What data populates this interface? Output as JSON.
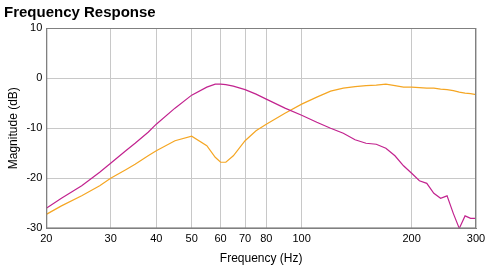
{
  "chart_data": {
    "type": "line",
    "title": "Frequency Response",
    "x_label": "Frequency (Hz)",
    "y_label": "Magnitude (dB)",
    "log": "x",
    "grid": true,
    "xlim": [
      20,
      300
    ],
    "xticks": [
      20,
      30,
      40,
      50,
      60,
      70,
      80,
      100,
      200,
      300
    ],
    "ylim": [
      -30,
      10
    ],
    "yticks": [
      -30,
      -20,
      -10,
      0,
      10
    ],
    "x": [
      20,
      22,
      25,
      28,
      30,
      33,
      35,
      38,
      40,
      45,
      50,
      55,
      58,
      60,
      62,
      65,
      70,
      75,
      80,
      90,
      100,
      110,
      120,
      130,
      140,
      150,
      160,
      170,
      180,
      190,
      200,
      210,
      220,
      230,
      240,
      250,
      260,
      270,
      280,
      290,
      300
    ],
    "series": [
      {
        "color": "#c2238f",
        "values": [
          -26,
          -24,
          -21.5,
          -18.8,
          -17,
          -14.5,
          -13,
          -10.8,
          -9.2,
          -6,
          -3.4,
          -1.8,
          -1.2,
          -1.2,
          -1.3,
          -1.6,
          -2.3,
          -3.2,
          -4.2,
          -6,
          -7.4,
          -8.8,
          -10,
          -11,
          -12.3,
          -13,
          -13.2,
          -14,
          -15.5,
          -17.5,
          -19,
          -20.5,
          -21,
          -23,
          -24,
          -23.5,
          -27,
          -30,
          -27.5,
          -28,
          -28
        ]
      },
      {
        "color": "#f5a623",
        "values": [
          -27.2,
          -25.5,
          -23.5,
          -21.5,
          -20,
          -18.3,
          -17.2,
          -15.5,
          -14.5,
          -12.5,
          -11.6,
          -13.5,
          -15.8,
          -16.8,
          -16.8,
          -15.5,
          -12.5,
          -10.5,
          -9.2,
          -7,
          -5.2,
          -3.8,
          -2.6,
          -2,
          -1.7,
          -1.5,
          -1.4,
          -1.2,
          -1.5,
          -1.8,
          -1.8,
          -1.9,
          -2,
          -2,
          -2.2,
          -2.3,
          -2.5,
          -2.8,
          -3,
          -3.1,
          -3.3
        ]
      }
    ]
  }
}
